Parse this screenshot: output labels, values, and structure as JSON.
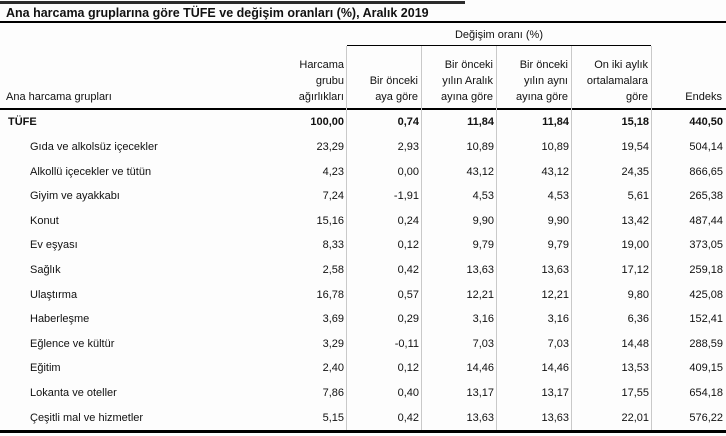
{
  "page": {
    "title": "Ana harcama gruplarına göre TÜFE ve değişim oranları (%), Aralık 2019"
  },
  "table": {
    "group_header": "Değişim oranı (%)",
    "row_header_label": "Ana harcama grupları",
    "column_headers": [
      "Harcama\ngrubu\nağırlıkları",
      "Bir önceki\naya göre",
      "Bir önceki\nyılın Aralık\nayına göre",
      "Bir önceki\nyılın aynı\nayına göre",
      "On iki aylık\nortalamalara\ngöre",
      "Endeks"
    ],
    "rows": [
      {
        "label": "TÜFE",
        "bold": true,
        "values": [
          "100,00",
          "0,74",
          "11,84",
          "11,84",
          "15,18",
          "440,50"
        ]
      },
      {
        "label": "Gıda ve alkolsüz içecekler",
        "bold": false,
        "values": [
          "23,29",
          "2,93",
          "10,89",
          "10,89",
          "19,54",
          "504,14"
        ]
      },
      {
        "label": "Alkollü içecekler ve tütün",
        "bold": false,
        "values": [
          "4,23",
          "0,00",
          "43,12",
          "43,12",
          "24,35",
          "866,65"
        ]
      },
      {
        "label": "Giyim ve ayakkabı",
        "bold": false,
        "values": [
          "7,24",
          "-1,91",
          "4,53",
          "4,53",
          "5,61",
          "265,38"
        ]
      },
      {
        "label": "Konut",
        "bold": false,
        "values": [
          "15,16",
          "0,24",
          "9,90",
          "9,90",
          "13,42",
          "487,44"
        ]
      },
      {
        "label": "Ev eşyası",
        "bold": false,
        "values": [
          "8,33",
          "0,12",
          "9,79",
          "9,79",
          "19,00",
          "373,05"
        ]
      },
      {
        "label": "Sağlık",
        "bold": false,
        "values": [
          "2,58",
          "0,42",
          "13,63",
          "13,63",
          "17,12",
          "259,18"
        ]
      },
      {
        "label": "Ulaştırma",
        "bold": false,
        "values": [
          "16,78",
          "0,57",
          "12,21",
          "12,21",
          "9,80",
          "425,08"
        ]
      },
      {
        "label": "Haberleşme",
        "bold": false,
        "values": [
          "3,69",
          "0,29",
          "3,16",
          "3,16",
          "6,36",
          "152,41"
        ]
      },
      {
        "label": "Eğlence ve kültür",
        "bold": false,
        "values": [
          "3,29",
          "-0,11",
          "7,03",
          "7,03",
          "14,48",
          "288,59"
        ]
      },
      {
        "label": "Eğitim",
        "bold": false,
        "values": [
          "2,40",
          "0,12",
          "14,46",
          "14,46",
          "13,53",
          "409,15"
        ]
      },
      {
        "label": "Lokanta ve oteller",
        "bold": false,
        "values": [
          "7,86",
          "0,40",
          "13,17",
          "13,17",
          "17,55",
          "654,18"
        ]
      },
      {
        "label": "Çeşitli mal ve hizmetler",
        "bold": false,
        "values": [
          "5,15",
          "0,42",
          "13,63",
          "13,63",
          "22,01",
          "576,22"
        ]
      }
    ]
  },
  "chart_data": {
    "type": "table",
    "title": "Ana harcama gruplarına göre TÜFE ve değişim oranları (%), Aralık 2019",
    "group_header": "Değişim oranı (%)",
    "group_header_spans_columns": [
      2,
      3,
      4,
      5
    ],
    "columns": [
      "Ana harcama grupları",
      "Harcama grubu ağırlıkları",
      "Bir önceki aya göre",
      "Bir önceki yılın Aralık ayına göre",
      "Bir önceki yılın aynı ayına göre",
      "On iki aylık ortalamalara göre",
      "Endeks"
    ],
    "rows": [
      [
        "TÜFE",
        100.0,
        0.74,
        11.84,
        11.84,
        15.18,
        440.5
      ],
      [
        "Gıda ve alkolsüz içecekler",
        23.29,
        2.93,
        10.89,
        10.89,
        19.54,
        504.14
      ],
      [
        "Alkollü içecekler ve tütün",
        4.23,
        0.0,
        43.12,
        43.12,
        24.35,
        866.65
      ],
      [
        "Giyim ve ayakkabı",
        7.24,
        -1.91,
        4.53,
        4.53,
        5.61,
        265.38
      ],
      [
        "Konut",
        15.16,
        0.24,
        9.9,
        9.9,
        13.42,
        487.44
      ],
      [
        "Ev eşyası",
        8.33,
        0.12,
        9.79,
        9.79,
        19.0,
        373.05
      ],
      [
        "Sağlık",
        2.58,
        0.42,
        13.63,
        13.63,
        17.12,
        259.18
      ],
      [
        "Ulaştırma",
        16.78,
        0.57,
        12.21,
        12.21,
        9.8,
        425.08
      ],
      [
        "Haberleşme",
        3.69,
        0.29,
        3.16,
        3.16,
        6.36,
        152.41
      ],
      [
        "Eğlence ve kültür",
        3.29,
        -0.11,
        7.03,
        7.03,
        14.48,
        288.59
      ],
      [
        "Eğitim",
        2.4,
        0.12,
        14.46,
        14.46,
        13.53,
        409.15
      ],
      [
        "Lokanta ve oteller",
        7.86,
        0.4,
        13.17,
        13.17,
        17.55,
        654.18
      ],
      [
        "Çeşitli mal ve hizmetler",
        5.15,
        0.42,
        13.63,
        13.63,
        22.01,
        576.22
      ]
    ]
  }
}
